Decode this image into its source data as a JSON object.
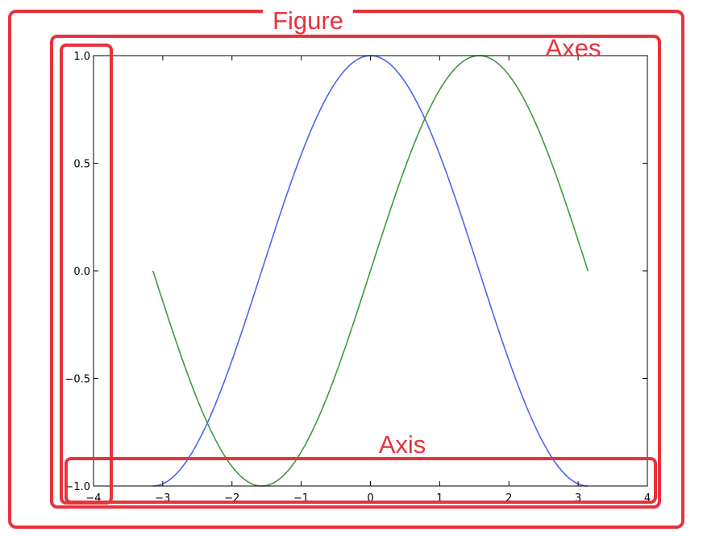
{
  "chart_data": {
    "type": "line",
    "title": "",
    "xlabel": "",
    "ylabel": "",
    "xlim": [
      -4,
      4
    ],
    "ylim": [
      -1.0,
      1.0
    ],
    "xticks": [
      -4,
      -3,
      -2,
      -1,
      0,
      1,
      2,
      3,
      4
    ],
    "xtick_labels": [
      "−4",
      "−3",
      "−2",
      "−1",
      "0",
      "1",
      "2",
      "3",
      "4"
    ],
    "yticks": [
      -1.0,
      -0.5,
      0.0,
      0.5,
      1.0
    ],
    "ytick_labels": [
      "−1.0",
      "−0.5",
      "0.0",
      "0.5",
      "1.0"
    ],
    "grid": false,
    "series": [
      {
        "color": "#4f64f0",
        "x": [
          -3.1416,
          -2.8274,
          -2.5133,
          -2.1991,
          -1.885,
          -1.5708,
          -1.2566,
          -0.9425,
          -0.6283,
          -0.3142,
          0.0,
          0.3142,
          0.6283,
          0.9425,
          1.2566,
          1.5708,
          1.885,
          2.1991,
          2.5133,
          2.8274,
          3.1416
        ],
        "y": [
          -1.0,
          -0.951,
          -0.809,
          -0.5878,
          -0.309,
          0.0,
          0.309,
          0.5878,
          0.809,
          0.951,
          1.0,
          0.951,
          0.809,
          0.5878,
          0.309,
          0.0,
          -0.309,
          -0.5878,
          -0.809,
          -0.951,
          -1.0
        ]
      },
      {
        "color": "#3f9b3f",
        "x": [
          -3.1416,
          -2.8274,
          -2.5133,
          -2.1991,
          -1.885,
          -1.5708,
          -1.2566,
          -0.9425,
          -0.6283,
          -0.3142,
          0.0,
          0.3142,
          0.6283,
          0.9425,
          1.2566,
          1.5708,
          1.885,
          2.1991,
          2.5133,
          2.8274,
          3.1416
        ],
        "y": [
          0.0,
          -0.309,
          -0.5878,
          -0.809,
          -0.951,
          -1.0,
          -0.951,
          -0.809,
          -0.5878,
          -0.309,
          0.0,
          0.309,
          0.5878,
          0.809,
          0.951,
          1.0,
          0.951,
          0.809,
          0.5878,
          0.309,
          0.0
        ]
      }
    ]
  },
  "annotations": {
    "figure_label": "Figure",
    "axes_label": "Axes",
    "axis_label": "Axis",
    "box_color": "#e8323c"
  }
}
